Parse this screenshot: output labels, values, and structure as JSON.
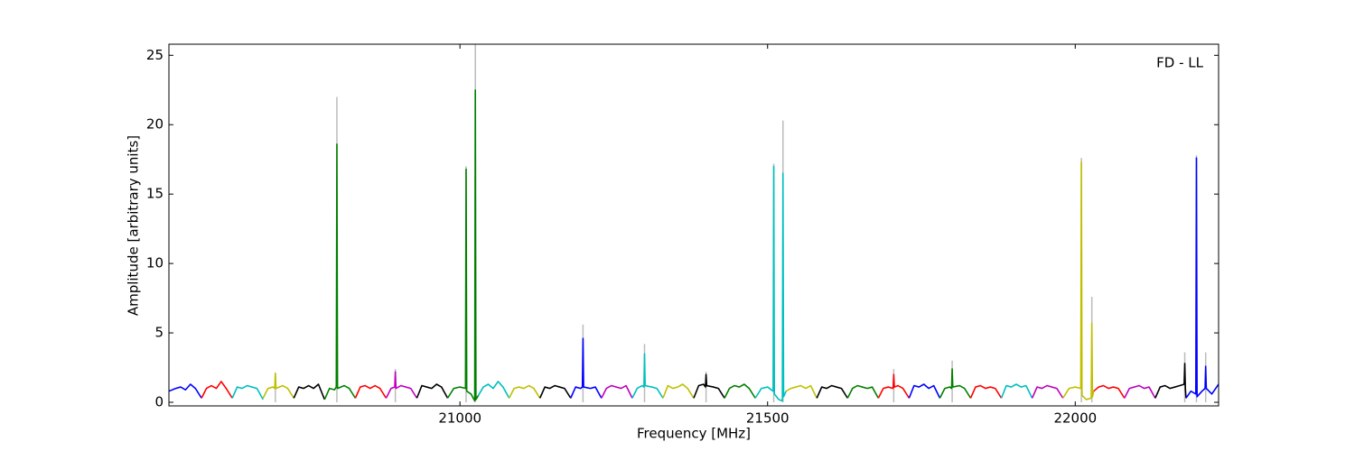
{
  "chart_data": {
    "type": "line",
    "annotation": "FD - LL",
    "xlabel": "Frequency [MHz]",
    "ylabel": "Amplitude [arbitrary units]",
    "xlim": [
      20527,
      22233
    ],
    "ylim": [
      -0.26,
      25.8
    ],
    "xticks": [
      21000,
      21500,
      22000
    ],
    "yticks": [
      0,
      5,
      10,
      15,
      20,
      25
    ],
    "stems": {
      "color": "#bbbbbb",
      "x": [
        20700,
        20800,
        20895,
        21010,
        21025,
        21200,
        21300,
        21400,
        21510,
        21525,
        21705,
        21800,
        22010,
        22027,
        22178,
        22197,
        22212
      ],
      "values": [
        2.1,
        22.0,
        2.4,
        17.0,
        26.5,
        5.6,
        4.2,
        2.2,
        17.2,
        20.3,
        2.4,
        3.0,
        17.6,
        7.6,
        3.6,
        17.8,
        3.6
      ]
    },
    "series": [
      {
        "color": "#0000ff",
        "x": [
          20527,
          20538,
          20546,
          20554,
          20562,
          20570,
          20580
        ],
        "values": [
          0.8,
          1.0,
          1.1,
          0.9,
          1.3,
          1.0,
          0.3
        ]
      },
      {
        "color": "#ff0000",
        "x": [
          20580,
          20588,
          20596,
          20604,
          20612,
          20620,
          20630
        ],
        "values": [
          0.3,
          1.0,
          1.2,
          1.0,
          1.5,
          1.0,
          0.3
        ]
      },
      {
        "color": "#00bfbf",
        "x": [
          20630,
          20638,
          20646,
          20654,
          20662,
          20670,
          20680
        ],
        "values": [
          0.3,
          1.1,
          1.0,
          1.2,
          1.1,
          1.0,
          0.2
        ]
      },
      {
        "color": "#bfbf00",
        "x": [
          20680,
          20688,
          20696,
          20699,
          20700,
          20701,
          20712,
          20720,
          20730
        ],
        "values": [
          0.3,
          1.0,
          1.1,
          1.0,
          2.1,
          1.0,
          1.2,
          1.0,
          0.3
        ]
      },
      {
        "color": "#000000",
        "x": [
          20730,
          20738,
          20746,
          20754,
          20762,
          20770,
          20780
        ],
        "values": [
          0.3,
          1.1,
          1.0,
          1.2,
          1.0,
          1.3,
          0.2
        ]
      },
      {
        "color": "#008000",
        "x": [
          20780,
          20788,
          20796,
          20799,
          20800,
          20801,
          20812,
          20820,
          20830
        ],
        "values": [
          0.2,
          1.0,
          0.9,
          1.1,
          18.6,
          1.0,
          1.2,
          1.0,
          0.3
        ]
      },
      {
        "color": "#ff0000",
        "x": [
          20830,
          20838,
          20846,
          20854,
          20862,
          20870,
          20880
        ],
        "values": [
          0.3,
          1.1,
          1.2,
          1.0,
          1.2,
          1.0,
          0.3
        ]
      },
      {
        "color": "#bf00bf",
        "x": [
          20880,
          20888,
          20894,
          20895,
          20896,
          20904,
          20912,
          20920,
          20930
        ],
        "values": [
          0.3,
          1.0,
          1.1,
          2.2,
          1.0,
          1.2,
          1.1,
          1.0,
          0.3
        ]
      },
      {
        "color": "#000000",
        "x": [
          20930,
          20938,
          20946,
          20954,
          20962,
          20970,
          20980
        ],
        "values": [
          0.3,
          1.2,
          1.1,
          1.0,
          1.3,
          1.1,
          0.3
        ]
      },
      {
        "color": "#008000",
        "x": [
          20980,
          20990,
          21000,
          21009,
          21010,
          21011,
          21018,
          21024,
          21025,
          21026,
          21030
        ],
        "values": [
          0.3,
          1.0,
          1.1,
          1.0,
          16.8,
          0.8,
          0.6,
          0.1,
          22.5,
          0.2,
          0.5
        ]
      },
      {
        "color": "#00bfbf",
        "x": [
          21030,
          21038,
          21046,
          21054,
          21062,
          21070,
          21080
        ],
        "values": [
          0.5,
          1.1,
          1.3,
          1.0,
          1.5,
          1.1,
          0.3
        ]
      },
      {
        "color": "#bfbf00",
        "x": [
          21080,
          21088,
          21096,
          21104,
          21112,
          21120,
          21130
        ],
        "values": [
          0.3,
          1.0,
          1.1,
          1.0,
          1.2,
          1.0,
          0.3
        ]
      },
      {
        "color": "#000000",
        "x": [
          21130,
          21138,
          21146,
          21154,
          21162,
          21170,
          21180
        ],
        "values": [
          0.3,
          1.1,
          1.0,
          1.2,
          1.1,
          1.0,
          0.3
        ]
      },
      {
        "color": "#0000ff",
        "x": [
          21180,
          21188,
          21196,
          21199,
          21200,
          21201,
          21212,
          21220,
          21230
        ],
        "values": [
          0.3,
          1.1,
          1.0,
          1.1,
          4.6,
          1.1,
          1.0,
          1.1,
          0.3
        ]
      },
      {
        "color": "#bf00bf",
        "x": [
          21230,
          21238,
          21246,
          21254,
          21262,
          21270,
          21280
        ],
        "values": [
          0.3,
          1.0,
          1.2,
          1.1,
          1.0,
          1.2,
          0.3
        ]
      },
      {
        "color": "#00bfbf",
        "x": [
          21280,
          21288,
          21296,
          21299,
          21300,
          21301,
          21312,
          21320,
          21330
        ],
        "values": [
          0.3,
          1.0,
          1.2,
          1.1,
          3.5,
          1.2,
          1.1,
          1.0,
          0.3
        ]
      },
      {
        "color": "#bfbf00",
        "x": [
          21330,
          21338,
          21346,
          21354,
          21362,
          21370,
          21380
        ],
        "values": [
          0.3,
          1.2,
          1.0,
          1.1,
          1.3,
          1.0,
          0.3
        ]
      },
      {
        "color": "#000000",
        "x": [
          21380,
          21388,
          21396,
          21399,
          21400,
          21401,
          21412,
          21420,
          21430
        ],
        "values": [
          0.3,
          1.2,
          1.3,
          1.1,
          2.0,
          1.2,
          1.1,
          1.0,
          0.3
        ]
      },
      {
        "color": "#008000",
        "x": [
          21430,
          21438,
          21446,
          21454,
          21462,
          21470,
          21480
        ],
        "values": [
          0.3,
          1.0,
          1.2,
          1.1,
          1.3,
          1.0,
          0.3
        ]
      },
      {
        "color": "#00bfbf",
        "x": [
          21480,
          21490,
          21500,
          21509,
          21510,
          21511,
          21518,
          21524,
          21525,
          21526,
          21530
        ],
        "values": [
          0.3,
          1.0,
          1.1,
          0.8,
          17.0,
          0.6,
          0.2,
          0.1,
          16.5,
          0.4,
          0.8
        ]
      },
      {
        "color": "#bfbf00",
        "x": [
          21530,
          21538,
          21546,
          21554,
          21562,
          21570,
          21580
        ],
        "values": [
          0.8,
          1.0,
          1.1,
          1.2,
          1.0,
          1.2,
          0.3
        ]
      },
      {
        "color": "#000000",
        "x": [
          21580,
          21588,
          21596,
          21604,
          21612,
          21620,
          21630
        ],
        "values": [
          0.3,
          1.1,
          1.0,
          1.2,
          1.1,
          1.0,
          0.3
        ]
      },
      {
        "color": "#008000",
        "x": [
          21630,
          21638,
          21646,
          21654,
          21662,
          21670,
          21680
        ],
        "values": [
          0.3,
          1.0,
          1.2,
          1.1,
          1.0,
          1.1,
          0.3
        ]
      },
      {
        "color": "#ff0000",
        "x": [
          21680,
          21688,
          21696,
          21704,
          21705,
          21706,
          21712,
          21720,
          21730
        ],
        "values": [
          0.3,
          1.0,
          1.1,
          1.0,
          2.0,
          1.1,
          1.2,
          1.0,
          0.3
        ]
      },
      {
        "color": "#0000ff",
        "x": [
          21730,
          21738,
          21746,
          21754,
          21762,
          21770,
          21780
        ],
        "values": [
          0.3,
          1.2,
          1.1,
          1.3,
          1.0,
          1.2,
          0.3
        ]
      },
      {
        "color": "#008000",
        "x": [
          21780,
          21788,
          21796,
          21799,
          21800,
          21801,
          21812,
          21820,
          21830
        ],
        "values": [
          0.3,
          1.0,
          1.1,
          1.0,
          2.4,
          1.1,
          1.2,
          1.0,
          0.3
        ]
      },
      {
        "color": "#ff0000",
        "x": [
          21830,
          21838,
          21846,
          21854,
          21862,
          21870,
          21880
        ],
        "values": [
          0.3,
          1.1,
          1.2,
          1.0,
          1.1,
          1.0,
          0.3
        ]
      },
      {
        "color": "#00bfbf",
        "x": [
          21880,
          21888,
          21896,
          21904,
          21912,
          21920,
          21930
        ],
        "values": [
          0.3,
          1.2,
          1.1,
          1.3,
          1.1,
          1.2,
          0.3
        ]
      },
      {
        "color": "#bf00bf",
        "x": [
          21930,
          21938,
          21946,
          21954,
          21962,
          21970,
          21980
        ],
        "values": [
          0.3,
          1.1,
          1.0,
          1.2,
          1.1,
          1.0,
          0.3
        ]
      },
      {
        "color": "#bfbf00",
        "x": [
          21980,
          21990,
          22000,
          22009,
          22010,
          22011,
          22018,
          22026,
          22027,
          22028,
          22030
        ],
        "values": [
          0.3,
          1.0,
          1.1,
          1.0,
          17.3,
          0.5,
          0.2,
          0.3,
          5.7,
          0.4,
          0.8
        ]
      },
      {
        "color": "#ff0000",
        "x": [
          22030,
          22038,
          22046,
          22054,
          22062,
          22070,
          22080
        ],
        "values": [
          0.8,
          1.1,
          1.2,
          1.0,
          1.1,
          1.0,
          0.3
        ]
      },
      {
        "color": "#bf00bf",
        "x": [
          22080,
          22088,
          22096,
          22104,
          22112,
          22120,
          22130
        ],
        "values": [
          0.3,
          1.0,
          1.1,
          1.2,
          1.0,
          1.1,
          0.3
        ]
      },
      {
        "color": "#000000",
        "x": [
          22130,
          22138,
          22146,
          22154,
          22162,
          22170,
          22177,
          22178,
          22179,
          22180
        ],
        "values": [
          0.3,
          1.1,
          1.2,
          1.0,
          1.1,
          1.2,
          1.3,
          2.8,
          1.0,
          0.3
        ]
      },
      {
        "color": "#0000ff",
        "x": [
          22180,
          22188,
          22196,
          22197,
          22198,
          22206,
          22211,
          22212,
          22213,
          22222,
          22233
        ],
        "values": [
          0.3,
          0.8,
          0.6,
          17.6,
          0.4,
          0.8,
          1.0,
          2.6,
          1.0,
          0.6,
          1.3
        ]
      }
    ]
  }
}
